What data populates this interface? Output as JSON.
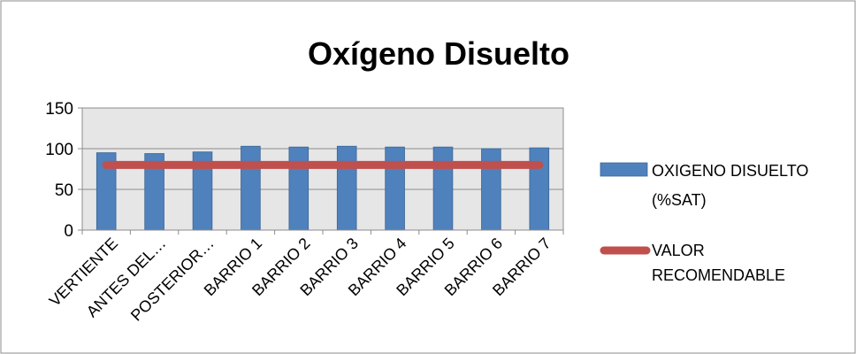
{
  "chart_data": {
    "type": "bar",
    "title": "Oxígeno Disuelto",
    "xlabel": "",
    "ylabel": "",
    "ylim": [
      0,
      150
    ],
    "yticks": [
      0,
      50,
      100,
      150
    ],
    "grid": true,
    "legend_position": "right",
    "categories": [
      "VERTIENTE",
      "ANTES DEL…",
      "POSTERIOR…",
      "BARRIO 1",
      "BARRIO 2",
      "BARRIO 3",
      "BARRIO 4",
      "BARRIO 5",
      "BARRIO 6",
      "BARRIO 7"
    ],
    "series": [
      {
        "name": "OXIGENO DISUELTO (%SAT)",
        "name_lines": [
          "OXIGENO DISUELTO",
          "(%SAT)"
        ],
        "kind": "bar",
        "color": "#4f81bd",
        "values": [
          95,
          94,
          96,
          103,
          102,
          103,
          102,
          102,
          100,
          101
        ]
      },
      {
        "name": "VALOR RECOMENDABLE",
        "name_lines": [
          "VALOR",
          "RECOMENDABLE"
        ],
        "kind": "line",
        "color": "#c0504d",
        "values": [
          80,
          80,
          80,
          80,
          80,
          80,
          80,
          80,
          80,
          80
        ]
      }
    ]
  }
}
